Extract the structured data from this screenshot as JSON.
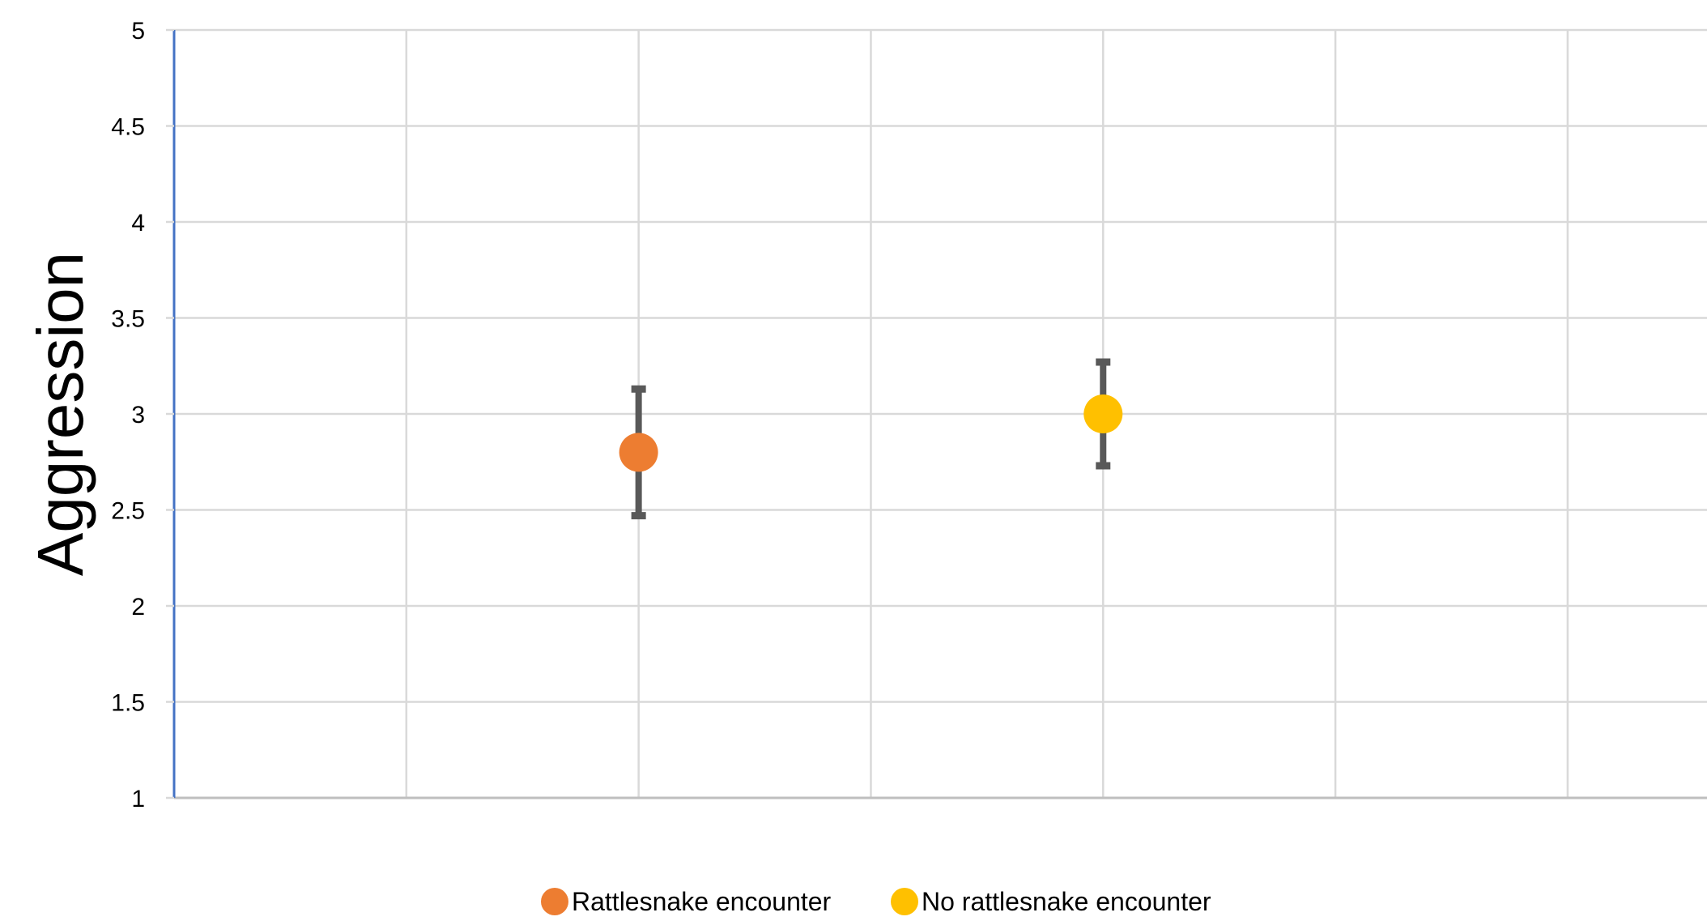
{
  "chart_data": {
    "type": "scatter",
    "title": "",
    "xlabel": "",
    "ylabel": "Aggression",
    "ylim": [
      1,
      5
    ],
    "y_ticks": [
      "1",
      "1.5",
      "2",
      "2.5",
      "3",
      "3.5",
      "4",
      "4.5",
      "5"
    ],
    "xlim": [
      0,
      6.6
    ],
    "grid": true,
    "legend_position": "bottom",
    "series": [
      {
        "name": "Rattlesnake encounter",
        "color": "#ED7D31",
        "x": 2,
        "y": 2.8,
        "error_low": 2.47,
        "error_high": 3.13
      },
      {
        "name": "No rattlesnake encounter",
        "color": "#FFC000",
        "x": 4,
        "y": 3.0,
        "error_low": 2.73,
        "error_high": 3.27
      }
    ],
    "colors": {
      "grid": "#D9D9D9",
      "y_axis": "#4472C4",
      "x_axis": "#BFBFBF",
      "error_bar": "#595959"
    }
  }
}
